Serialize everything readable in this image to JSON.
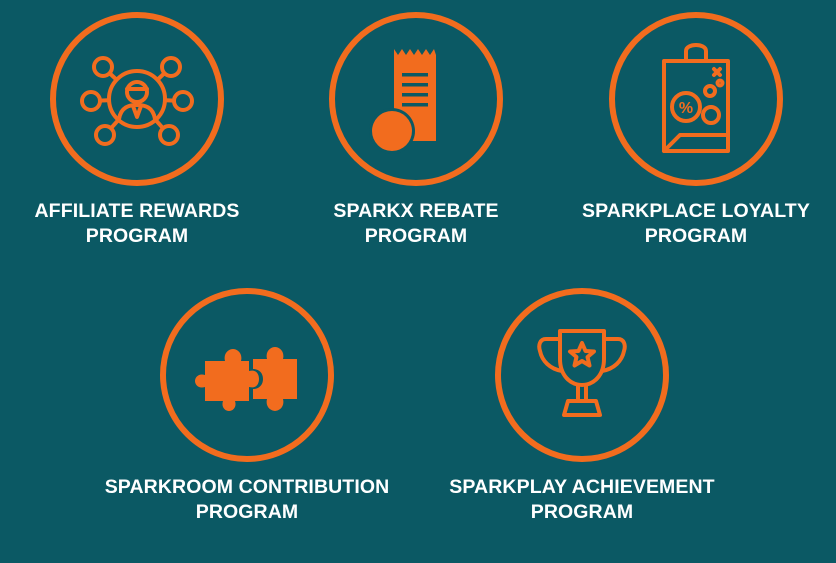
{
  "accent_color": "#f26c1e",
  "background_color": "#0b5964",
  "programs": [
    {
      "icon": "network-person-icon",
      "line1": "AFFILIATE REWARDS",
      "line2": "PROGRAM"
    },
    {
      "icon": "receipt-coin-icon",
      "line1": "SPARKX REBATE",
      "line2": "PROGRAM"
    },
    {
      "icon": "shopping-bag-discount-icon",
      "line1": "SPARKPLACE LOYALTY",
      "line2": "PROGRAM"
    },
    {
      "icon": "puzzle-pieces-icon",
      "line1": "SPARKROOM CONTRIBUTION",
      "line2": "PROGRAM"
    },
    {
      "icon": "trophy-star-icon",
      "line1": "SPARKPLAY ACHIEVEMENT",
      "line2": "PROGRAM"
    }
  ]
}
